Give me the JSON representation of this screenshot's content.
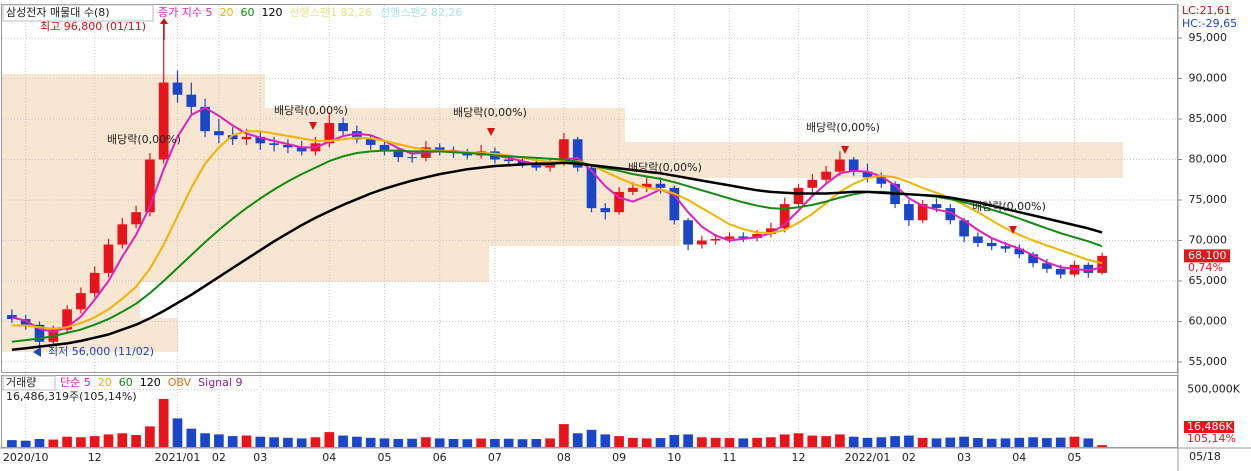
{
  "chart_data": [
    {
      "type": "candlestick",
      "title": "삼성전자 매물대 수(8)",
      "up_color": "#e8141c",
      "down_color": "#1c46c8",
      "ohlc": {
        "open": [
          60800,
          60300,
          59600,
          57500,
          59000,
          61500,
          63500,
          66000,
          69500,
          72000,
          73500,
          80000,
          89500,
          88000,
          86500,
          83500,
          83000,
          82500,
          82800,
          82000,
          81800,
          81500,
          81000,
          82000,
          84500,
          83500,
          82500,
          81800,
          81000,
          80300,
          80200,
          81500,
          81000,
          80800,
          80500,
          81000,
          80000,
          79800,
          79500,
          79000,
          79500,
          82500,
          79000,
          74000,
          73500,
          76000,
          76500,
          77000,
          76500,
          72500,
          69500,
          70000,
          70200,
          70500,
          70300,
          70800,
          71500,
          74500,
          76500,
          77500,
          78500,
          80000,
          78500,
          77800,
          77000,
          74500,
          72500,
          74500,
          74000,
          72500,
          70500,
          69700,
          69300,
          69000,
          68300,
          67200,
          66500,
          65800,
          67000,
          66000
        ],
        "high": [
          61500,
          60800,
          60000,
          59500,
          62000,
          64200,
          66800,
          70200,
          72800,
          74300,
          80800,
          96800,
          91000,
          89500,
          87500,
          85000,
          84000,
          83800,
          83500,
          82800,
          82500,
          82300,
          82800,
          85800,
          85200,
          84200,
          83000,
          82300,
          81500,
          81000,
          82300,
          82000,
          81600,
          81300,
          81800,
          81500,
          80600,
          80300,
          80100,
          80200,
          83300,
          82800,
          79300,
          74600,
          76600,
          77200,
          77800,
          77800,
          76800,
          72800,
          70600,
          70800,
          71000,
          71000,
          71300,
          72200,
          75300,
          77000,
          78200,
          79200,
          81000,
          80300,
          79500,
          78400,
          77300,
          75000,
          75000,
          75200,
          74500,
          72800,
          71000,
          70200,
          69800,
          69500,
          68600,
          67700,
          67000,
          67500,
          67300,
          68500
        ],
        "low": [
          59800,
          59000,
          56000,
          57000,
          58700,
          61000,
          63000,
          65500,
          69000,
          71500,
          73000,
          79500,
          87000,
          85500,
          82800,
          82000,
          81800,
          81800,
          81200,
          81000,
          80800,
          80500,
          80500,
          81500,
          83000,
          82000,
          81200,
          80500,
          79700,
          79600,
          79800,
          80500,
          80200,
          80000,
          80100,
          79500,
          79200,
          79000,
          78600,
          78500,
          79200,
          78500,
          73500,
          72600,
          73200,
          75600,
          76000,
          75800,
          72000,
          68800,
          69000,
          69500,
          69700,
          69800,
          69900,
          70400,
          71000,
          74000,
          76000,
          77000,
          78000,
          78000,
          77200,
          76500,
          74000,
          71800,
          72200,
          73500,
          72000,
          69800,
          69200,
          68800,
          68500,
          67800,
          66700,
          66000,
          65300,
          65500,
          65400,
          65800
        ],
        "close": [
          60300,
          59600,
          57500,
          59000,
          61500,
          63500,
          66000,
          69500,
          72000,
          73500,
          80000,
          89500,
          88000,
          86500,
          83500,
          83000,
          82500,
          82800,
          82000,
          81800,
          81500,
          81000,
          82000,
          84500,
          83500,
          82500,
          81800,
          81000,
          80300,
          80200,
          81500,
          81000,
          80800,
          80500,
          81000,
          80000,
          79800,
          79500,
          79000,
          79500,
          82500,
          79000,
          74000,
          73500,
          76000,
          76500,
          77000,
          76500,
          72500,
          69500,
          70000,
          70200,
          70500,
          70300,
          70800,
          71500,
          74500,
          76500,
          77500,
          78500,
          80000,
          78500,
          77800,
          77000,
          74500,
          72500,
          74500,
          74000,
          72500,
          70500,
          69700,
          69300,
          69000,
          68300,
          67200,
          66500,
          65800,
          67000,
          66000,
          68100
        ]
      },
      "lines": [
        {
          "name": "종가 지수 5",
          "color": "#e020c0",
          "width": 2,
          "values": [
            60500,
            60100,
            59100,
            58700,
            59300,
            60600,
            62700,
            65000,
            68000,
            70700,
            74200,
            78800,
            82800,
            85500,
            86400,
            85400,
            84200,
            83200,
            82700,
            82300,
            81900,
            81500,
            81500,
            82200,
            82900,
            83200,
            83000,
            82300,
            81400,
            80700,
            80900,
            81000,
            81100,
            80800,
            80800,
            80500,
            80200,
            79800,
            79400,
            79300,
            80000,
            80200,
            78600,
            76700,
            75300,
            74800,
            75500,
            76300,
            75600,
            73500,
            71700,
            70600,
            70000,
            70200,
            70400,
            70900,
            72000,
            73700,
            75500,
            77000,
            78300,
            78600,
            78500,
            77900,
            76800,
            75200,
            74300,
            73800,
            73500,
            72500,
            71300,
            70300,
            69600,
            69000,
            68200,
            67300,
            66700,
            66500,
            66300,
            66700
          ]
        },
        {
          "name": "20",
          "color": "#f0b400",
          "width": 2,
          "values": [
            59500,
            59500,
            59300,
            59100,
            59300,
            59800,
            60500,
            61500,
            62800,
            64300,
            66500,
            69500,
            73000,
            76500,
            79500,
            81500,
            83000,
            83500,
            83500,
            83200,
            82900,
            82600,
            82300,
            82300,
            82500,
            82700,
            82600,
            82300,
            81900,
            81500,
            81200,
            81100,
            81000,
            80900,
            80800,
            80700,
            80500,
            80200,
            79900,
            79700,
            79800,
            79800,
            79300,
            78500,
            77700,
            77000,
            76500,
            76300,
            75800,
            75000,
            74000,
            73000,
            72000,
            71400,
            71000,
            70900,
            71300,
            72200,
            73300,
            74600,
            76000,
            77000,
            77700,
            78000,
            77800,
            77200,
            76500,
            75900,
            75200,
            74400,
            73500,
            72500,
            71500,
            70700,
            70000,
            69400,
            68800,
            68200,
            67600,
            67200
          ]
        },
        {
          "name": "60",
          "color": "#128a12",
          "width": 2,
          "values": [
            57500,
            57700,
            57900,
            58200,
            58600,
            59000,
            59600,
            60300,
            61200,
            62200,
            63500,
            65000,
            66600,
            68200,
            69800,
            71300,
            72700,
            74000,
            75200,
            76300,
            77300,
            78200,
            79000,
            79800,
            80400,
            80800,
            81000,
            81100,
            81100,
            81000,
            81000,
            81000,
            80900,
            80800,
            80700,
            80500,
            80400,
            80300,
            80200,
            80100,
            80000,
            79700,
            79300,
            78900,
            78600,
            78200,
            77900,
            77600,
            77200,
            76700,
            76200,
            75700,
            75200,
            74700,
            74300,
            74000,
            73900,
            74100,
            74400,
            74800,
            75300,
            75700,
            76000,
            76000,
            75900,
            75700,
            75600,
            75400,
            75100,
            74700,
            74300,
            73800,
            73300,
            72700,
            72100,
            71500,
            70900,
            70400,
            69900,
            69300
          ]
        },
        {
          "name": "120",
          "color": "#000000",
          "width": 2.5,
          "values": [
            56500,
            56700,
            56900,
            57100,
            57300,
            57600,
            58000,
            58400,
            59000,
            59600,
            60400,
            61300,
            62300,
            63300,
            64400,
            65500,
            66600,
            67700,
            68800,
            69900,
            70900,
            71900,
            72800,
            73600,
            74400,
            75100,
            75800,
            76400,
            76900,
            77400,
            77800,
            78200,
            78500,
            78800,
            79000,
            79200,
            79300,
            79400,
            79500,
            79500,
            79600,
            79500,
            79300,
            79100,
            78900,
            78700,
            78500,
            78300,
            78000,
            77700,
            77400,
            77100,
            76800,
            76500,
            76200,
            76000,
            75900,
            75800,
            75800,
            75800,
            75900,
            76000,
            76000,
            75900,
            75800,
            75700,
            75600,
            75500,
            75300,
            75000,
            74700,
            74300,
            73900,
            73500,
            73100,
            72700,
            72300,
            71900,
            71500,
            71000
          ]
        }
      ],
      "legend_extra": [
        {
          "name": "선행스팬1 82,26",
          "color": "#e8e28a"
        },
        {
          "name": "선행스팬2 82,26",
          "color": "#a8e2f0"
        }
      ],
      "ylim": [
        53765,
        99075
      ],
      "yticks": [
        {
          "value": 95000,
          "label": "95,000"
        },
        {
          "value": 90000,
          "label": "90,000"
        },
        {
          "value": 85000,
          "label": "85,000"
        },
        {
          "value": 80000,
          "label": "80,000"
        },
        {
          "value": 75000,
          "label": "75,000"
        },
        {
          "value": 70000,
          "label": "70,000"
        },
        {
          "value": 65000,
          "label": "65,000"
        },
        {
          "value": 60000,
          "label": "60,000"
        },
        {
          "value": 55000,
          "label": "55,000"
        }
      ],
      "grid": true,
      "annotations": [
        "배당락(0,00%)",
        "배당락(0,00%)",
        "배당락(0,00%)",
        "배당락(0,00%)",
        "배당락(0,00%)",
        "배당락(0,00%)"
      ],
      "high_label": "최고 96,800 (01/11)",
      "low_label": "최저 56,000 (11/02)",
      "last_price_label": "68,100",
      "change_label": "0,74%",
      "indicator_labels": [
        "LC:21,61",
        "HC:-29,65"
      ]
    },
    {
      "type": "bar",
      "title": "거래량",
      "categories": [
        null,
        "2020/10",
        null,
        null,
        null,
        null,
        "12",
        null,
        null,
        null,
        null,
        null,
        "2021/01",
        null,
        null,
        "02",
        null,
        null,
        "03",
        null,
        null,
        null,
        null,
        "04",
        null,
        null,
        null,
        "05",
        null,
        null,
        null,
        "06",
        null,
        null,
        null,
        "07",
        null,
        null,
        null,
        null,
        "08",
        null,
        null,
        null,
        "09",
        null,
        null,
        null,
        "10",
        null,
        null,
        null,
        "11",
        null,
        null,
        null,
        null,
        "12",
        null,
        null,
        null,
        null,
        "2022/01",
        null,
        null,
        "02",
        null,
        null,
        null,
        "03",
        null,
        null,
        null,
        "04",
        null,
        null,
        null,
        "05",
        null,
        null
      ],
      "values": [
        60000,
        55000,
        70000,
        65000,
        90000,
        85000,
        95000,
        110000,
        120000,
        105000,
        180000,
        420000,
        250000,
        160000,
        120000,
        110000,
        95000,
        100000,
        90000,
        85000,
        80000,
        75000,
        85000,
        130000,
        100000,
        90000,
        80000,
        75000,
        70000,
        72000,
        85000,
        75000,
        70000,
        68000,
        74000,
        70000,
        72000,
        68000,
        70000,
        75000,
        200000,
        120000,
        150000,
        110000,
        95000,
        80000,
        75000,
        78000,
        105000,
        110000,
        85000,
        80000,
        78000,
        75000,
        80000,
        85000,
        110000,
        120000,
        100000,
        95000,
        110000,
        90000,
        80000,
        85000,
        95000,
        100000,
        80000,
        75000,
        82000,
        90000,
        78000,
        72000,
        75000,
        80000,
        85000,
        78000,
        82000,
        90000,
        75000,
        16486
      ],
      "legend": [
        {
          "name": "단순 5",
          "color": "#e020c0"
        },
        {
          "name": "20",
          "color": "#f0b400"
        },
        {
          "name": "60",
          "color": "#128a12"
        },
        {
          "name": "120",
          "color": "#000000"
        },
        {
          "name": "OBV",
          "color": "#e07010"
        },
        {
          "name": "Signal 9",
          "color": "#9020a0"
        }
      ],
      "summary_label": "16,486,319주(105,14%)",
      "last_value_label": "16,486K",
      "ratio_label": "105,14%",
      "ylim": [
        0,
        620000
      ],
      "yticks": [
        {
          "value": 500000,
          "label": "500,000K"
        }
      ],
      "current_date": "05/18"
    }
  ]
}
